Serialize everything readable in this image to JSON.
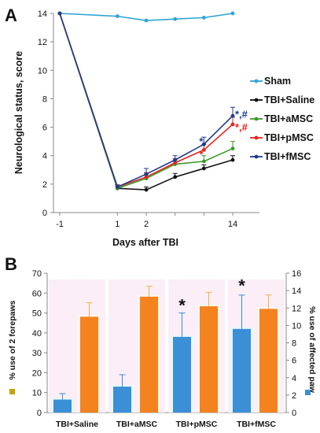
{
  "chart_data": [
    {
      "panel_label": "A",
      "type": "line",
      "xlabel": "Days after TBI",
      "ylabel": "Neurological status, score",
      "x_ticks": [
        "-1",
        "1",
        "2",
        "14"
      ],
      "ylim": [
        0,
        14
      ],
      "y_ticks": [
        "0",
        "2",
        "4",
        "6",
        "8",
        "10",
        "12",
        "14"
      ],
      "legend_position": "right",
      "x": [
        -1,
        1,
        2,
        3,
        4,
        5
      ],
      "series": [
        {
          "name": "Sham",
          "color": "#2fa4d6",
          "values": [
            14,
            13.8,
            13.5,
            13.6,
            13.7,
            14
          ],
          "errors": [
            0,
            0,
            0,
            0,
            0,
            0
          ]
        },
        {
          "name": "TBI+Saline",
          "color": "#111111",
          "values": [
            14,
            1.7,
            1.6,
            2.5,
            3.1,
            3.7
          ],
          "errors": [
            0,
            0.15,
            0.2,
            0.25,
            0.25,
            0.3
          ]
        },
        {
          "name": "TBI+aMSC",
          "color": "#3a9a2a",
          "values": [
            14,
            1.7,
            2.4,
            3.4,
            3.6,
            4.5
          ],
          "errors": [
            0,
            0.15,
            0.3,
            0.3,
            0.4,
            0.5
          ]
        },
        {
          "name": "TBI+pMSC",
          "color": "#e8231d",
          "values": [
            14,
            1.8,
            2.5,
            3.5,
            4.4,
            6.2
          ],
          "errors": [
            0,
            0.15,
            0.3,
            0.3,
            0.4,
            0.5
          ]
        },
        {
          "name": "TBI+fMSC",
          "color": "#1f3c8a",
          "values": [
            14,
            1.8,
            2.7,
            3.7,
            4.8,
            6.8
          ],
          "errors": [
            0,
            0.15,
            0.4,
            0.3,
            0.5,
            0.6
          ]
        }
      ],
      "annotations": [
        {
          "text": "*",
          "color": "#1f3c8a",
          "x": 4,
          "y": 5.2
        },
        {
          "text": "*",
          "color": "#e8231d",
          "x": 4,
          "y": 4.3
        },
        {
          "text": "*,#",
          "color": "#1f3c8a",
          "x": 5,
          "y": 7.1
        },
        {
          "text": "*,#",
          "color": "#e8231d",
          "x": 5,
          "y": 6.2
        }
      ]
    },
    {
      "panel_label": "B",
      "type": "bar",
      "categories": [
        "TBI+Saline",
        "TBI+aMSC",
        "TBI+pMSC",
        "TBI+fMSC"
      ],
      "ylim_left": [
        0,
        70
      ],
      "y_ticks_left": [
        "0",
        "10",
        "20",
        "30",
        "40",
        "50",
        "60",
        "70"
      ],
      "ylim_right": [
        0,
        16
      ],
      "y_ticks_right": [
        "0",
        "2",
        "4",
        "6",
        "8",
        "10",
        "12",
        "14",
        "16"
      ],
      "ylabel_left": "% use of 2 forepaws",
      "ylabel_right": "% use of affected paw",
      "series": [
        {
          "color": "#3a8fd6",
          "axis": "left",
          "values": [
            6.5,
            13,
            38,
            42
          ],
          "errors": [
            3,
            6,
            12,
            17
          ]
        },
        {
          "color": "#f4821f",
          "axis": "right",
          "values": [
            11,
            13.3,
            12.2,
            11.9
          ],
          "errors": [
            1.6,
            1.2,
            1.6,
            1.6
          ]
        }
      ],
      "annotations": [
        {
          "text": "*",
          "category": 2,
          "value": 50
        },
        {
          "text": "*",
          "category": 3,
          "value": 60
        }
      ]
    }
  ]
}
